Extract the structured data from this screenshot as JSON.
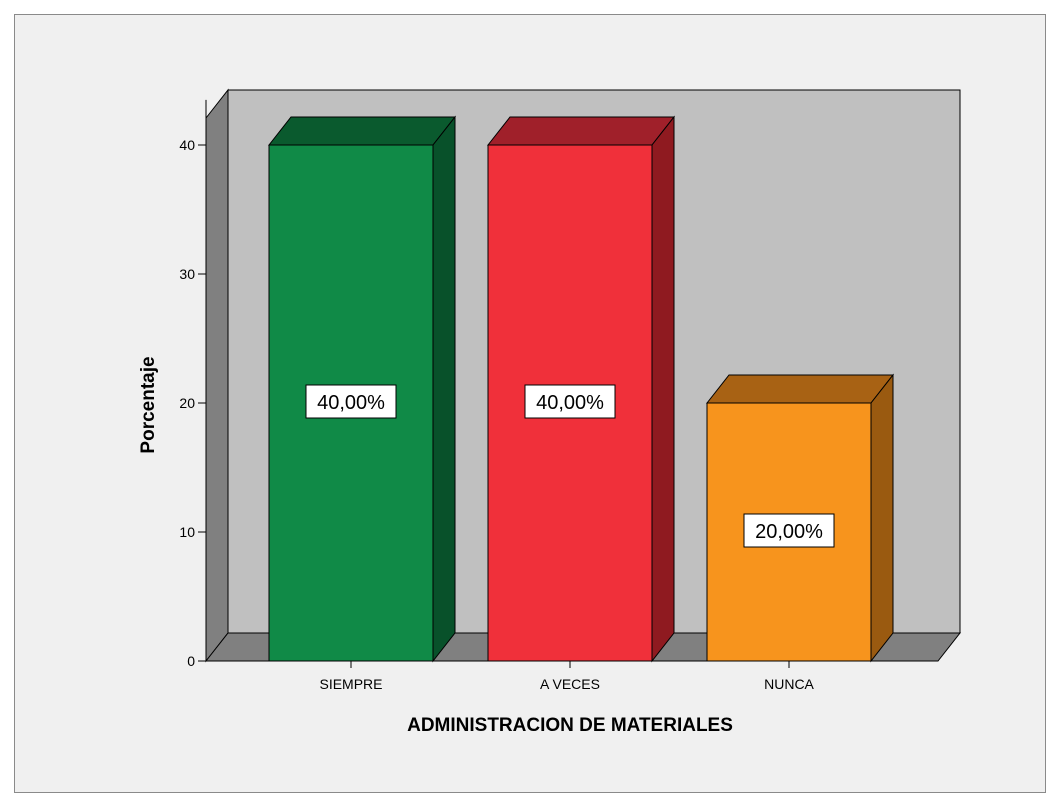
{
  "chart_data": {
    "type": "bar",
    "style": "3d",
    "categories": [
      "SIEMPRE",
      "A VECES",
      "NUNCA"
    ],
    "values": [
      40,
      40,
      20
    ],
    "data_labels": [
      "40,00%",
      "40,00%",
      "20,00%"
    ],
    "colors": [
      "#108a47",
      "#f0303a",
      "#f7941d"
    ],
    "side_colors": [
      "#08512a",
      "#8f1a20",
      "#9a5a10"
    ],
    "top_colors": [
      "#0a5a2e",
      "#a0202a",
      "#a86214"
    ],
    "xlabel": "ADMINISTRACION DE MATERIALES",
    "ylabel": "Porcentaje",
    "yticks": [
      0,
      10,
      20,
      30,
      40
    ],
    "ylim": [
      0,
      43.5
    ],
    "grid": false,
    "wall_color": "#c0c0c0",
    "floor_color": "#808080",
    "frame_background": "#f0f0f0"
  }
}
